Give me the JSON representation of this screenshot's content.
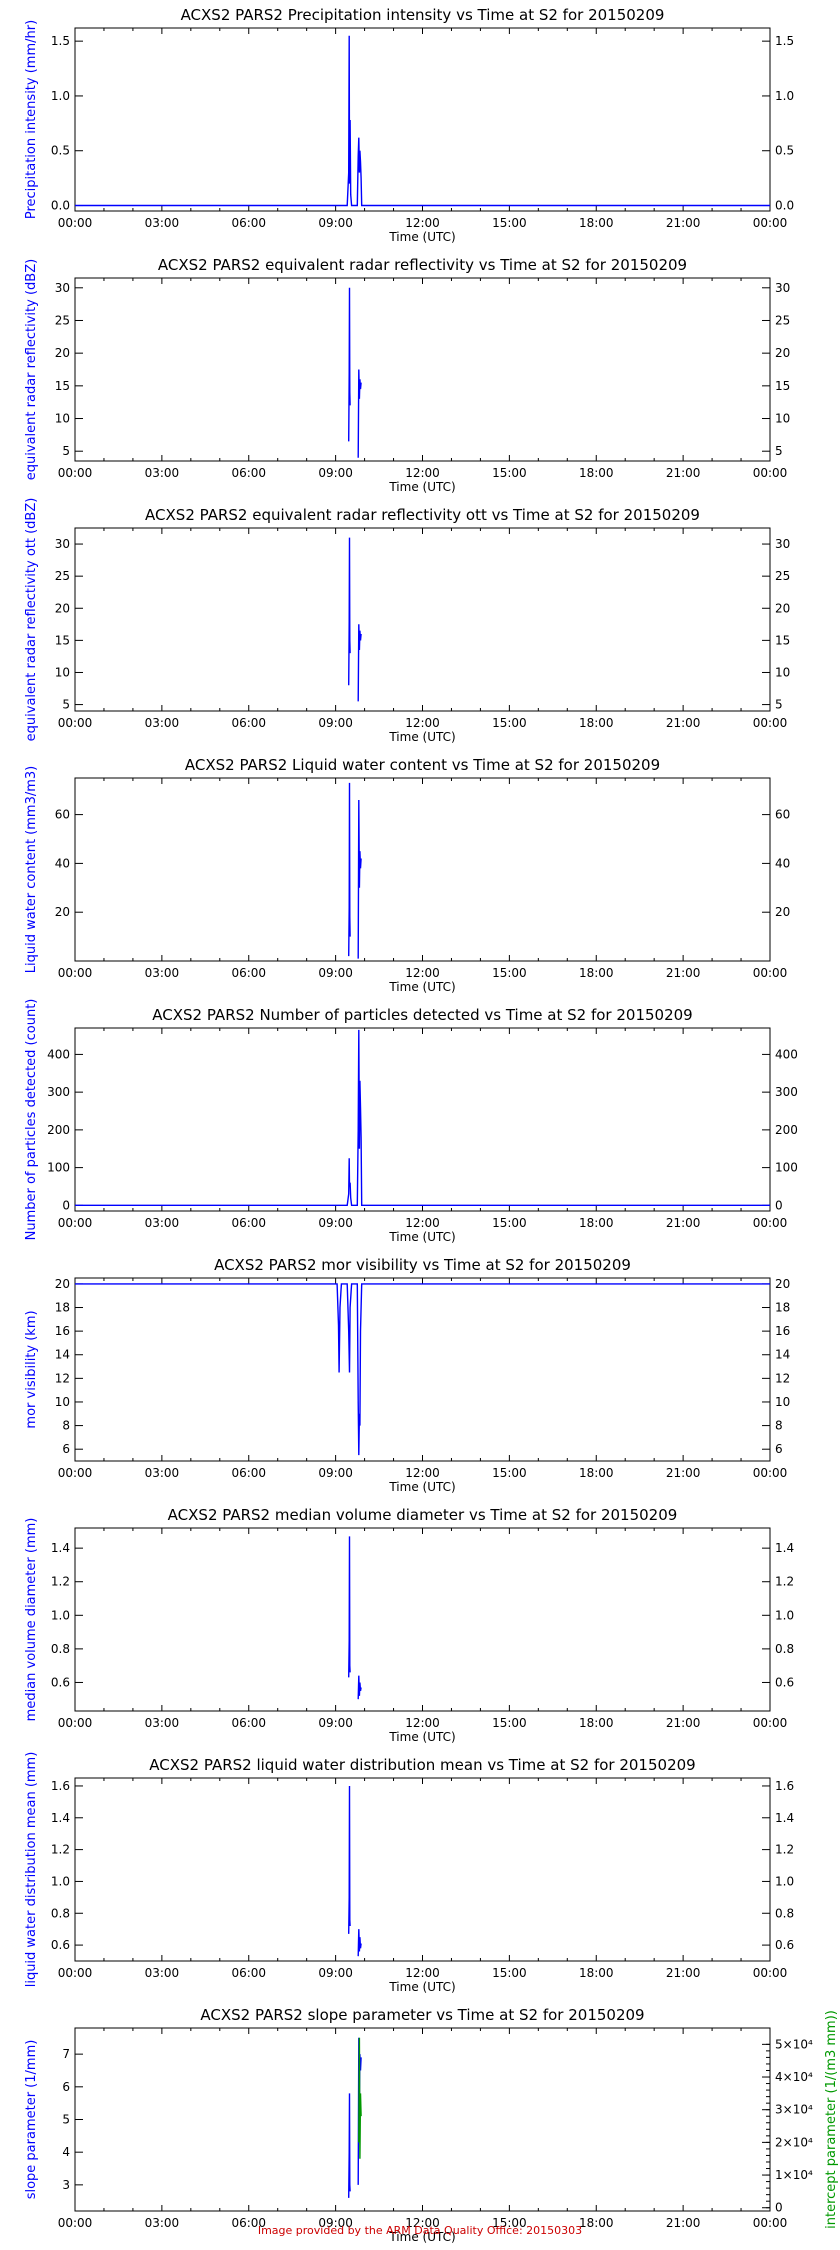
{
  "footer_text": "Image provided by the ARM Data Quality Office: 20150303",
  "colors": {
    "series": "#0000ff",
    "secondary": "#009900",
    "axis": "#000000",
    "footer": "#cc0000"
  },
  "chart_data": [
    {
      "type": "line",
      "title": "ACXS2 PARS2 Precipitation intensity vs Time at S2 for 20150209",
      "xlabel": "Time (UTC)",
      "ylabel": "Precipitation intensity (mm/hr)",
      "xticks": [
        "00:00",
        "03:00",
        "06:00",
        "09:00",
        "12:00",
        "15:00",
        "18:00",
        "21:00",
        "00:00"
      ],
      "xlim_hours": [
        0,
        24
      ],
      "ylim": [
        -0.05,
        1.62
      ],
      "yticks": [
        0.0,
        0.5,
        1.0,
        1.5
      ],
      "ytick_labels": [
        "0.0",
        "0.5",
        "1.0",
        "1.5"
      ],
      "series": [
        {
          "color": "#0000ff",
          "x_hours": [
            0,
            9.4,
            9.45,
            9.47,
            9.48,
            9.5,
            9.52,
            9.55,
            9.6,
            9.75,
            9.78,
            9.8,
            9.82,
            9.84,
            9.86,
            9.88,
            9.9,
            24
          ],
          "y": [
            0,
            0,
            0.3,
            1.55,
            0.2,
            0.78,
            0.1,
            0,
            0,
            0,
            0.45,
            0.62,
            0.3,
            0.5,
            0.4,
            0.25,
            0,
            0
          ]
        }
      ]
    },
    {
      "type": "line",
      "title": "ACXS2 PARS2 equivalent radar reflectivity vs Time at S2 for 20150209",
      "xlabel": "Time (UTC)",
      "ylabel": "equivalent radar reflectivity (dBZ)",
      "xticks": [
        "00:00",
        "03:00",
        "06:00",
        "09:00",
        "12:00",
        "15:00",
        "18:00",
        "21:00",
        "00:00"
      ],
      "xlim_hours": [
        0,
        24
      ],
      "ylim": [
        3.5,
        31.5
      ],
      "yticks": [
        5,
        10,
        15,
        20,
        25,
        30
      ],
      "ytick_labels": [
        "5",
        "10",
        "15",
        "20",
        "25",
        "30"
      ],
      "series": [
        {
          "color": "#0000ff",
          "x_hours": [
            9.45,
            9.47,
            9.48,
            9.49,
            9.5
          ],
          "y": [
            6.5,
            17.0,
            30.0,
            14.0,
            12.0
          ]
        },
        {
          "color": "#0000ff",
          "x_hours": [
            9.78,
            9.8,
            9.82,
            9.84,
            9.86,
            9.88
          ],
          "y": [
            4.0,
            17.5,
            13.0,
            16.0,
            14.5,
            15.5
          ]
        }
      ]
    },
    {
      "type": "line",
      "title": "ACXS2 PARS2 equivalent radar reflectivity ott vs Time at S2 for 20150209",
      "xlabel": "Time (UTC)",
      "ylabel": "equivalent radar reflectivity ott (dBZ)",
      "xticks": [
        "00:00",
        "03:00",
        "06:00",
        "09:00",
        "12:00",
        "15:00",
        "18:00",
        "21:00",
        "00:00"
      ],
      "xlim_hours": [
        0,
        24
      ],
      "ylim": [
        4.0,
        32.5
      ],
      "yticks": [
        5,
        10,
        15,
        20,
        25,
        30
      ],
      "ytick_labels": [
        "5",
        "10",
        "15",
        "20",
        "25",
        "30"
      ],
      "series": [
        {
          "color": "#0000ff",
          "x_hours": [
            9.45,
            9.47,
            9.48,
            9.49,
            9.5
          ],
          "y": [
            8.0,
            18.0,
            31.0,
            15.0,
            13.0
          ]
        },
        {
          "color": "#0000ff",
          "x_hours": [
            9.78,
            9.8,
            9.82,
            9.84,
            9.86,
            9.88
          ],
          "y": [
            5.5,
            17.5,
            13.5,
            16.5,
            15.0,
            16.0
          ]
        }
      ]
    },
    {
      "type": "line",
      "title": "ACXS2 PARS2 Liquid water content vs Time at S2 for 20150209",
      "xlabel": "Time (UTC)",
      "ylabel": "Liquid water content (mm3/m3)",
      "xticks": [
        "00:00",
        "03:00",
        "06:00",
        "09:00",
        "12:00",
        "15:00",
        "18:00",
        "21:00",
        "00:00"
      ],
      "xlim_hours": [
        0,
        24
      ],
      "ylim": [
        0,
        75
      ],
      "yticks": [
        20,
        40,
        60
      ],
      "ytick_labels": [
        "20",
        "40",
        "60"
      ],
      "series": [
        {
          "color": "#0000ff",
          "x_hours": [
            9.45,
            9.47,
            9.48,
            9.49,
            9.5
          ],
          "y": [
            2.0,
            22.0,
            73.0,
            18.0,
            10.0
          ]
        },
        {
          "color": "#0000ff",
          "x_hours": [
            9.78,
            9.8,
            9.82,
            9.84,
            9.86,
            9.88
          ],
          "y": [
            1.0,
            66.0,
            30.0,
            45.0,
            38.0,
            42.0
          ]
        }
      ]
    },
    {
      "type": "line",
      "title": "ACXS2 PARS2 Number of particles detected vs Time at S2 for 20150209",
      "xlabel": "Time (UTC)",
      "ylabel": "Number of particles detected (count)",
      "xticks": [
        "00:00",
        "03:00",
        "06:00",
        "09:00",
        "12:00",
        "15:00",
        "18:00",
        "21:00",
        "00:00"
      ],
      "xlim_hours": [
        0,
        24
      ],
      "ylim": [
        -15,
        470
      ],
      "yticks": [
        0,
        100,
        200,
        300,
        400
      ],
      "ytick_labels": [
        "0",
        "100",
        "200",
        "300",
        "400"
      ],
      "series": [
        {
          "color": "#0000ff",
          "x_hours": [
            0,
            9.4,
            9.45,
            9.47,
            9.48,
            9.5,
            9.52,
            9.55,
            9.6,
            9.75,
            9.78,
            9.8,
            9.82,
            9.84,
            9.86,
            9.88,
            9.9,
            24
          ],
          "y": [
            0,
            0,
            30,
            125,
            50,
            60,
            20,
            0,
            0,
            0,
            200,
            465,
            150,
            330,
            260,
            180,
            0,
            0
          ]
        }
      ]
    },
    {
      "type": "line",
      "title": "ACXS2 PARS2 mor visibility vs Time at S2 for 20150209",
      "xlabel": "Time (UTC)",
      "ylabel": "mor visibility (km)",
      "xticks": [
        "00:00",
        "03:00",
        "06:00",
        "09:00",
        "12:00",
        "15:00",
        "18:00",
        "21:00",
        "00:00"
      ],
      "xlim_hours": [
        0,
        24
      ],
      "ylim": [
        5.0,
        20.5
      ],
      "yticks": [
        6,
        8,
        10,
        12,
        14,
        16,
        18,
        20
      ],
      "ytick_labels": [
        "6",
        "8",
        "10",
        "12",
        "14",
        "16",
        "18",
        "20"
      ],
      "series": [
        {
          "color": "#0000ff",
          "x_hours": [
            0,
            9.05,
            9.1,
            9.12,
            9.15,
            9.2,
            9.4,
            9.45,
            9.48,
            9.5,
            9.55,
            9.75,
            9.78,
            9.8,
            9.82,
            9.84,
            9.86,
            9.9,
            24
          ],
          "y": [
            20,
            20,
            16.5,
            12.5,
            18.0,
            20,
            20,
            16.0,
            12.5,
            18.0,
            20,
            20,
            10.0,
            5.5,
            9.0,
            8.0,
            16.0,
            20,
            20
          ]
        }
      ]
    },
    {
      "type": "line",
      "title": "ACXS2 PARS2 median volume diameter vs Time at S2 for 20150209",
      "xlabel": "Time (UTC)",
      "ylabel": "median volume diameter (mm)",
      "xticks": [
        "00:00",
        "03:00",
        "06:00",
        "09:00",
        "12:00",
        "15:00",
        "18:00",
        "21:00",
        "00:00"
      ],
      "xlim_hours": [
        0,
        24
      ],
      "ylim": [
        0.43,
        1.52
      ],
      "yticks": [
        0.6,
        0.8,
        1.0,
        1.2,
        1.4
      ],
      "ytick_labels": [
        "0.6",
        "0.8",
        "1.0",
        "1.2",
        "1.4"
      ],
      "series": [
        {
          "color": "#0000ff",
          "x_hours": [
            9.45,
            9.47,
            9.48,
            9.49,
            9.5
          ],
          "y": [
            0.63,
            0.85,
            1.47,
            0.7,
            0.66
          ]
        },
        {
          "color": "#0000ff",
          "x_hours": [
            9.78,
            9.8,
            9.82,
            9.84,
            9.86,
            9.88
          ],
          "y": [
            0.5,
            0.64,
            0.52,
            0.6,
            0.55,
            0.57
          ]
        }
      ]
    },
    {
      "type": "line",
      "title": "ACXS2 PARS2 liquid water distribution mean vs Time at S2 for 20150209",
      "xlabel": "Time (UTC)",
      "ylabel": "liquid water distribution mean (mm)",
      "xticks": [
        "00:00",
        "03:00",
        "06:00",
        "09:00",
        "12:00",
        "15:00",
        "18:00",
        "21:00",
        "00:00"
      ],
      "xlim_hours": [
        0,
        24
      ],
      "ylim": [
        0.5,
        1.65
      ],
      "yticks": [
        0.6,
        0.8,
        1.0,
        1.2,
        1.4,
        1.6
      ],
      "ytick_labels": [
        "0.6",
        "0.8",
        "1.0",
        "1.2",
        "1.4",
        "1.6"
      ],
      "series": [
        {
          "color": "#0000ff",
          "x_hours": [
            9.45,
            9.47,
            9.48,
            9.49,
            9.5
          ],
          "y": [
            0.67,
            0.9,
            1.6,
            0.76,
            0.72
          ]
        },
        {
          "color": "#0000ff",
          "x_hours": [
            9.78,
            9.8,
            9.82,
            9.84,
            9.86,
            9.88
          ],
          "y": [
            0.53,
            0.7,
            0.56,
            0.65,
            0.58,
            0.61
          ]
        }
      ]
    },
    {
      "type": "line",
      "title": "ACXS2 PARS2 slope parameter vs Time at S2 for 20150209",
      "xlabel": "Time (UTC)",
      "ylabel": "slope parameter (1/mm)",
      "ylabel_right": "intercept parameter (1/(m3 mm))",
      "xticks": [
        "00:00",
        "03:00",
        "06:00",
        "09:00",
        "12:00",
        "15:00",
        "18:00",
        "21:00",
        "00:00"
      ],
      "xlim_hours": [
        0,
        24
      ],
      "ylim": [
        2.2,
        7.8
      ],
      "yticks": [
        3,
        4,
        5,
        6,
        7
      ],
      "ytick_labels": [
        "3",
        "4",
        "5",
        "6",
        "7"
      ],
      "y2lim": [
        -1000,
        55000
      ],
      "y2ticks": [
        0,
        10000,
        20000,
        30000,
        40000,
        50000
      ],
      "y2tick_labels": [
        "0",
        "1×10⁴",
        "2×10⁴",
        "3×10⁴",
        "4×10⁴",
        "5×10⁴"
      ],
      "series": [
        {
          "color": "#0000ff",
          "x_hours": [
            9.45,
            9.47,
            9.48,
            9.49,
            9.5
          ],
          "y": [
            2.6,
            4.0,
            5.8,
            3.0,
            2.8
          ]
        },
        {
          "color": "#0000ff",
          "x_hours": [
            9.78,
            9.8,
            9.82,
            9.84,
            9.86,
            9.88
          ],
          "y": [
            3.0,
            7.5,
            5.5,
            7.0,
            6.5,
            6.9
          ]
        },
        {
          "color": "#009900",
          "axis": "right",
          "x_hours": [
            9.8,
            9.82,
            9.84,
            9.86,
            9.88
          ],
          "y": [
            20000,
            52000,
            15000,
            35000,
            28000
          ]
        }
      ]
    }
  ]
}
